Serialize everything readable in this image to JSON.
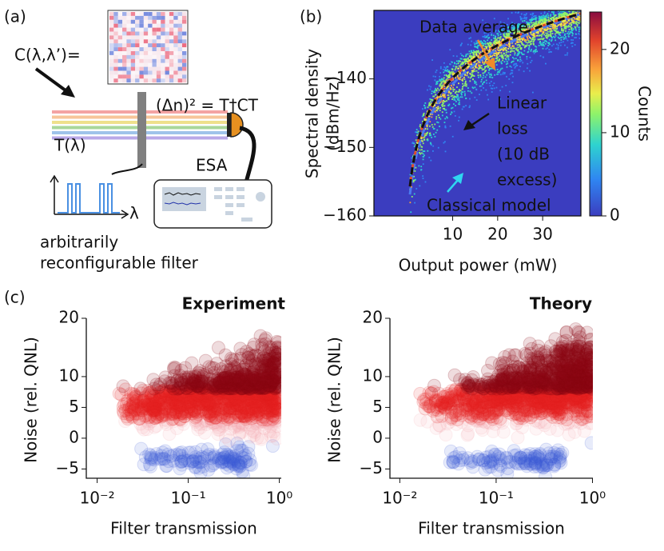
{
  "panels": {
    "a": {
      "label": "(a)",
      "matrix_label": "C(λ,λ’)=",
      "formula": "(Δn)² = T†CT",
      "esa": "ESA",
      "filter_label": "T(λ)",
      "lambda": "λ",
      "caption_lines": [
        "arbitrarily",
        "reconfigurable filter"
      ]
    },
    "b": {
      "label": "(b)",
      "ylabel_lines": [
        "Spectral density",
        "(dBm/Hz)"
      ],
      "xlabel": "Output power (mW)",
      "xlim": [
        -7.5,
        38.5
      ],
      "ylim": [
        -160,
        -130
      ],
      "xticks": [
        10,
        20,
        30
      ],
      "yticks": [
        {
          "value": -160,
          "label": "−160"
        },
        {
          "value": -150,
          "label": "−150"
        },
        {
          "value": -140,
          "label": "−140"
        }
      ],
      "colorbar": {
        "label": "Counts",
        "lim": [
          0,
          24.5
        ],
        "ticks": [
          0,
          10,
          20
        ]
      },
      "annotations": [
        {
          "text": "Data average",
          "color": "#f08a2a"
        },
        {
          "lines": [
            "Linear",
            "loss",
            "(10 dB",
            "excess)"
          ],
          "color": "#111"
        },
        {
          "text": "Classical model",
          "color": "#2fd6f0"
        }
      ]
    },
    "c": {
      "label": "(c)",
      "plots": [
        {
          "title": "Experiment",
          "xlabel": "Filter transmission",
          "ylabel": "Noise (rel. QNL)",
          "log_x": true,
          "yscale": "symlog",
          "linthresh": 10,
          "linscale": 0.318,
          "xlim": [
            0.0076,
            1.05
          ],
          "ylim": [
            -6.5,
            20
          ],
          "xticks": [
            {
              "value": 0.01,
              "label": "10⁻²"
            },
            {
              "value": 0.1,
              "label": "10⁻¹"
            },
            {
              "value": 1,
              "label": "10⁰"
            }
          ],
          "yticks": [
            {
              "value": -5,
              "label": "−5"
            },
            0,
            5,
            10,
            20
          ]
        },
        {
          "title": "Theory",
          "xlabel": "Filter transmission",
          "ylabel": "Noise (rel. QNL)",
          "log_x": true,
          "yscale": "symlog",
          "linthresh": 10,
          "linscale": 0.318,
          "xlim": [
            0.0079,
            1.01
          ],
          "ylim": [
            -6.5,
            20
          ],
          "xticks": [
            {
              "value": 0.01,
              "label": "10⁻²"
            },
            {
              "value": 0.1,
              "label": "10⁻¹"
            },
            {
              "value": 1,
              "label": "10⁰"
            }
          ],
          "yticks": [
            {
              "value": -5,
              "label": "−5"
            },
            0,
            5,
            10,
            20
          ]
        }
      ]
    }
  }
}
